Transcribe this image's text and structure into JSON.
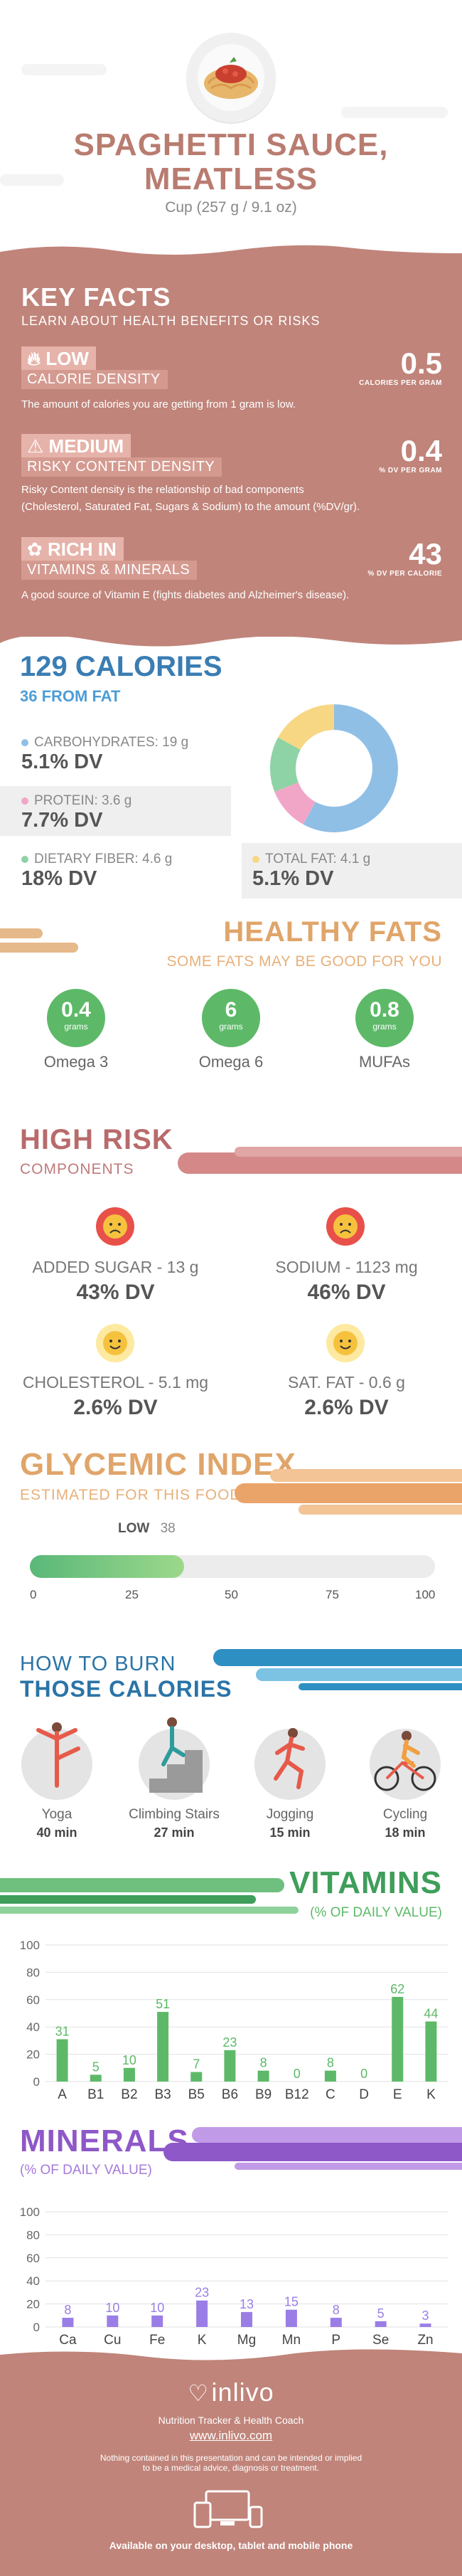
{
  "header": {
    "title_line1": "SPAGHETTI SAUCE,",
    "title_line2": "MEATLESS",
    "serving": "Cup (257 g / 9.1 oz)",
    "image_icon": "spaghetti-plate-icon"
  },
  "key_facts": {
    "title": "KEY FACTS",
    "subtitle": "LEARN ABOUT HEALTH BENEFITS OR RISKS",
    "items": [
      {
        "level": "LOW",
        "label": "CALORIE DENSITY",
        "value": "0.5",
        "unit": "CALORIES PER GRAM",
        "desc": "The amount of calories you are getting from 1 gram is low.",
        "icon": "flame-icon"
      },
      {
        "level": "MEDIUM",
        "label": "RISKY CONTENT DENSITY",
        "value": "0.4",
        "unit": "% DV PER GRAM",
        "desc1": "Risky Content density is the relationship of bad components",
        "desc2": "(Cholesterol, Saturated Fat, Sugars & Sodium) to the amount (%DV/gr).",
        "icon": "warning-icon"
      },
      {
        "level": "RICH  IN",
        "label": "VITAMINS & MINERALS",
        "value": "43",
        "unit": "% DV PER CALORIE",
        "desc": "A good source of Vitamin E (fights diabetes and Alzheimer's disease).",
        "icon": "leaf-icon"
      }
    ]
  },
  "calories": {
    "title": "129 CALORIES",
    "subtitle": "36 FROM FAT",
    "nutrients": [
      {
        "label": "CARBOHYDRATES: 19 g",
        "dv": "5.1% DV",
        "color": "#90bfe6"
      },
      {
        "label": "PROTEIN: 3.6 g",
        "dv": "7.7% DV",
        "color": "#f2a6c7"
      },
      {
        "label": "DIETARY FIBER: 4.6 g",
        "dv": "18% DV",
        "color": "#8ed3a5"
      },
      {
        "label": "TOTAL FAT: 4.1 g",
        "dv": "5.1% DV",
        "color": "#f7d784"
      }
    ],
    "donut": [
      {
        "name": "carbohydrates",
        "value": 58,
        "color": "#90bfe6"
      },
      {
        "name": "protein",
        "value": 11,
        "color": "#f2a6c7"
      },
      {
        "name": "fiber",
        "value": 14,
        "color": "#8ed3a5"
      },
      {
        "name": "fat",
        "value": 17,
        "color": "#f7d784"
      }
    ]
  },
  "healthy_fats": {
    "title": "HEALTHY FATS",
    "subtitle": "SOME FATS MAY BE GOOD FOR YOU",
    "items": [
      {
        "value": "0.4",
        "unit": "grams",
        "label": "Omega 3"
      },
      {
        "value": "6",
        "unit": "grams",
        "label": "Omega 6"
      },
      {
        "value": "0.8",
        "unit": "grams",
        "label": "MUFAs"
      }
    ]
  },
  "high_risk": {
    "title": "HIGH RISK",
    "subtitle": "COMPONENTS",
    "items": [
      {
        "label": "ADDED SUGAR - 13 g",
        "dv": "43% DV",
        "face": "sad-face-icon"
      },
      {
        "label": "SODIUM - 1123 mg",
        "dv": "46% DV",
        "face": "sad-face-icon"
      },
      {
        "label": "CHOLESTEROL - 5.1 mg",
        "dv": "2.6% DV",
        "face": "smile-face-icon"
      },
      {
        "label": "SAT. FAT - 0.6 g",
        "dv": "2.6% DV",
        "face": "smile-face-icon"
      }
    ]
  },
  "glycemic": {
    "title": "GLYCEMIC INDEX",
    "subtitle": "ESTIMATED FOR THIS FOOD",
    "level": "LOW",
    "value": "38",
    "fraction": 0.38,
    "ticks": [
      "0",
      "25",
      "50",
      "75",
      "100"
    ]
  },
  "burn": {
    "title1": "HOW TO BURN",
    "title2": "THOSE CALORIES",
    "items": [
      {
        "label": "Yoga",
        "time": "40 min",
        "icon": "yoga-icon"
      },
      {
        "label": "Climbing Stairs",
        "time": "27 min",
        "icon": "stairs-icon"
      },
      {
        "label": "Jogging",
        "time": "15 min",
        "icon": "jogging-icon"
      },
      {
        "label": "Cycling",
        "time": "18 min",
        "icon": "cycling-icon"
      }
    ]
  },
  "vitamins": {
    "title": "VITAMINS",
    "subtitle": "(% OF DAILY VALUE)"
  },
  "minerals": {
    "title": "MINERALS",
    "subtitle": "(% OF DAILY VALUE)"
  },
  "chart_data": [
    {
      "type": "bar",
      "categories": [
        "A",
        "B1",
        "B2",
        "B3",
        "B5",
        "B6",
        "B9",
        "B12",
        "C",
        "D",
        "E",
        "K"
      ],
      "values": [
        31,
        5,
        10,
        51,
        7,
        23,
        8,
        0,
        8,
        0,
        62,
        44
      ],
      "ylim": [
        0,
        100
      ],
      "yticks": [
        "0",
        "20",
        "40",
        "60",
        "80",
        "100"
      ],
      "grid": true,
      "color": "#5db968"
    },
    {
      "type": "bar",
      "categories": [
        "Ca",
        "Cu",
        "Fe",
        "K",
        "Mg",
        "Mn",
        "P",
        "Se",
        "Zn"
      ],
      "values": [
        8,
        10,
        10,
        23,
        13,
        15,
        8,
        5,
        3
      ],
      "ylim": [
        0,
        100
      ],
      "yticks": [
        "0",
        "20",
        "40",
        "60",
        "80",
        "100"
      ],
      "grid": true,
      "color": "#9a7ee6"
    }
  ],
  "footer": {
    "brand": "inlivo",
    "tagline": "Nutrition Tracker & Health Coach",
    "url": "www.inlivo.com",
    "disclaimer1": "Nothing contained in this presentation and can be intended or implied",
    "disclaimer2": "to be a medical advice, diagnosis or treatment.",
    "available": "Available on your desktop, tablet and mobile phone"
  }
}
